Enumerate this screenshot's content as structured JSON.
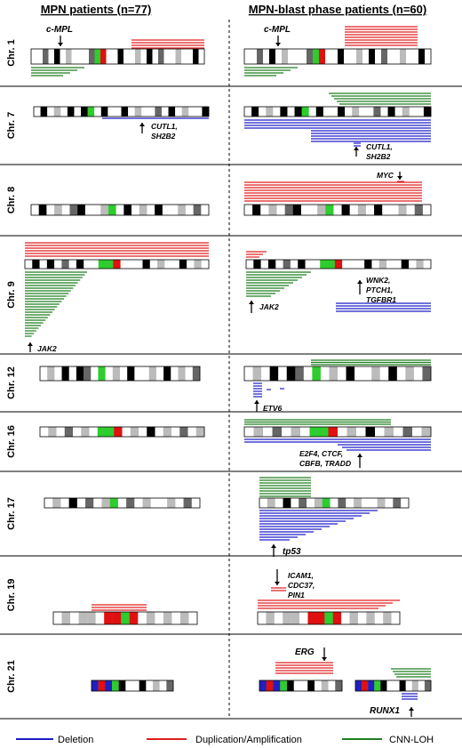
{
  "header": {
    "left": "MPN patients (n=77)",
    "right": "MPN-blast phase patients (n=60)"
  },
  "rows": [
    {
      "label": "Chr. 1",
      "genes": [
        "c-MPL",
        "c-MPL"
      ]
    },
    {
      "label": "Chr. 7",
      "genes": [
        "CUTL1,",
        "SH2B2",
        "CUTL1,",
        "SH2B2"
      ]
    },
    {
      "label": "Chr. 8",
      "genes": [
        "MYC"
      ]
    },
    {
      "label": "Chr. 9",
      "genes": [
        "JAK2",
        "JAK2",
        "WNK2,",
        "PTCH1,",
        "TGFBR1"
      ]
    },
    {
      "label": "Chr. 12",
      "genes": [
        "ETV6"
      ]
    },
    {
      "label": "Chr. 16",
      "genes": [
        "E2F4, CTCF,",
        "CBFB, TRADD"
      ]
    },
    {
      "label": "Chr. 17",
      "genes": [
        "tp53"
      ]
    },
    {
      "label": "Chr. 19",
      "genes": [
        "ICAM1,",
        "CDC37,",
        "PIN1"
      ]
    },
    {
      "label": "Chr. 21",
      "genes": [
        "ERG",
        "RUNX1"
      ]
    }
  ],
  "legend": [
    {
      "label": "Deletion",
      "color": "#1c1cc8"
    },
    {
      "label": "Duplication/Amplification",
      "color": "#e01e1e"
    },
    {
      "label": "CNN-LOH",
      "color": "#1e7e1e"
    }
  ]
}
